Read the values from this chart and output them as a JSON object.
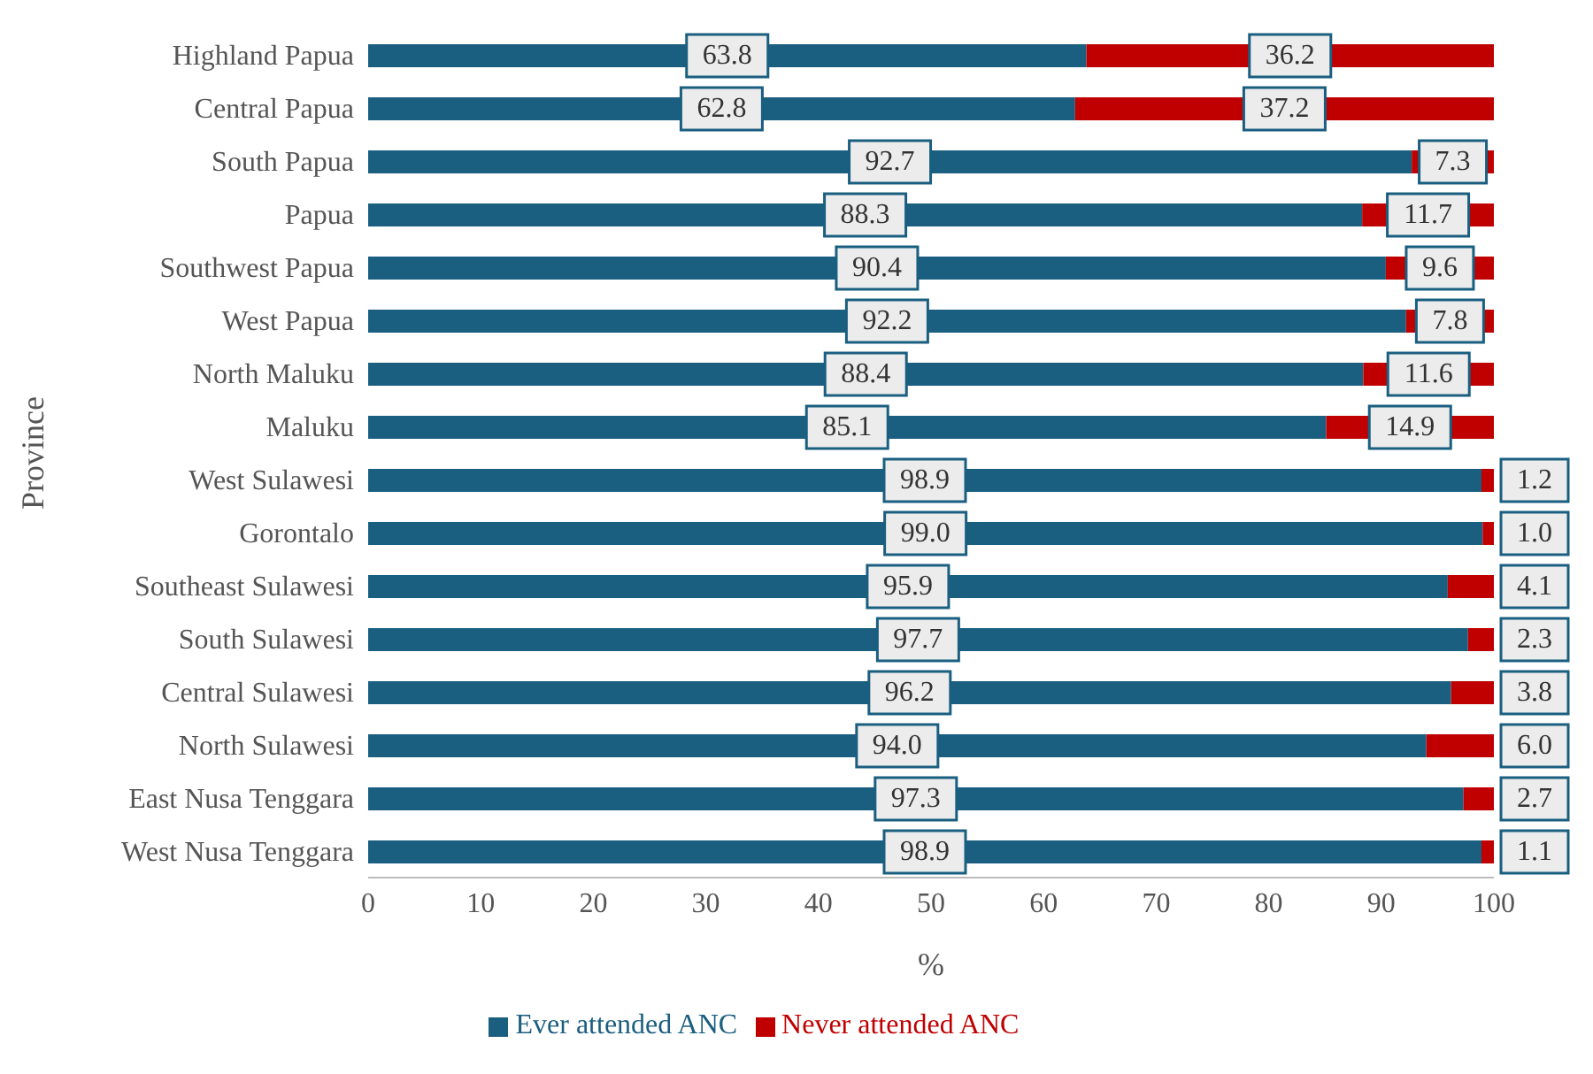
{
  "chart_data": {
    "type": "bar",
    "orientation": "horizontal",
    "stacked": true,
    "xlabel": "%",
    "ylabel": "Province",
    "categories": [
      "Highland Papua",
      "Central Papua",
      "South Papua",
      "Papua",
      "Southwest Papua",
      "West Papua",
      "North Maluku",
      "Maluku",
      "West Sulawesi",
      "Gorontalo",
      "Southeast Sulawesi",
      "South Sulawesi",
      "Central Sulawesi",
      "North Sulawesi",
      "East Nusa Tenggara",
      "West Nusa Tenggara"
    ],
    "series": [
      {
        "name": "Ever attended ANC",
        "color": "#1a5e80",
        "values": [
          63.8,
          62.8,
          92.7,
          88.3,
          90.4,
          92.2,
          88.4,
          85.1,
          98.9,
          99.0,
          95.9,
          97.7,
          96.2,
          94.0,
          97.3,
          98.9
        ],
        "value_labels": [
          "63.8",
          "62.8",
          "92.7",
          "88.3",
          "90.4",
          "92.2",
          "88.4",
          "85.1",
          "98.9",
          "99.0",
          "95.9",
          "97.7",
          "96.2",
          "94.0",
          "97.3",
          "98.9"
        ]
      },
      {
        "name": "Never attended ANC",
        "color": "#c00000",
        "values": [
          36.2,
          37.2,
          7.3,
          11.7,
          9.6,
          7.8,
          11.6,
          14.9,
          1.2,
          1.0,
          4.1,
          2.3,
          3.8,
          6.0,
          2.7,
          1.1
        ],
        "value_labels": [
          "36.2",
          "37.2",
          "7.3",
          "11.7",
          "9.6",
          "7.8",
          "11.6",
          "14.9",
          "1.2",
          "1.0",
          "4.1",
          "2.3",
          "3.8",
          "6.0",
          "2.7",
          "1.1"
        ]
      }
    ],
    "xlim": [
      0,
      100
    ],
    "xticks": [
      0,
      10,
      20,
      30,
      40,
      50,
      60,
      70,
      80,
      90,
      100
    ],
    "grid": false,
    "legend": "bottom"
  }
}
